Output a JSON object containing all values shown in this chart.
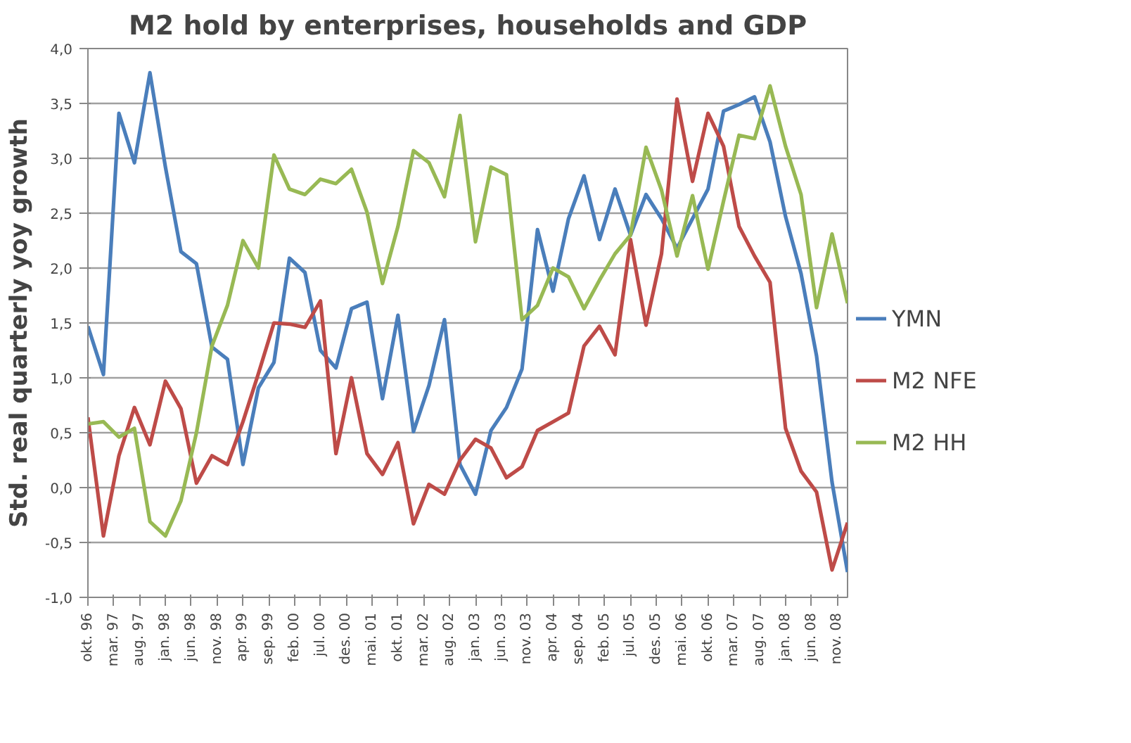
{
  "chart_data": {
    "type": "line",
    "title": "M2 hold by enterprises, households and GDP",
    "ylabel": "Std. real quarterly yoy growth",
    "x": [
      "1996-10",
      "1997-01",
      "1997-04",
      "1997-07",
      "1997-10",
      "1998-01",
      "1998-04",
      "1998-07",
      "1998-10",
      "1999-01",
      "1999-04",
      "1999-07",
      "1999-10",
      "2000-01",
      "2000-04",
      "2000-07",
      "2000-10",
      "2001-01",
      "2001-04",
      "2001-07",
      "2001-10",
      "2002-01",
      "2002-04",
      "2002-07",
      "2002-10",
      "2003-01",
      "2003-04",
      "2003-07",
      "2003-10",
      "2004-01",
      "2004-04",
      "2004-07",
      "2004-10",
      "2005-01",
      "2005-04",
      "2005-07",
      "2005-10",
      "2006-01",
      "2006-04",
      "2006-07",
      "2006-10",
      "2007-01",
      "2007-04",
      "2007-07",
      "2007-10",
      "2008-01",
      "2008-04",
      "2008-07",
      "2008-10",
      "2009-01"
    ],
    "series": [
      {
        "name": "YMN",
        "color": "#4a7ebb",
        "values": [
          1.47,
          1.03,
          3.41,
          2.96,
          3.78,
          2.92,
          2.15,
          2.04,
          1.28,
          1.17,
          0.21,
          0.91,
          1.14,
          2.09,
          1.96,
          1.25,
          1.09,
          1.63,
          1.69,
          0.81,
          1.57,
          0.51,
          0.93,
          1.53,
          0.21,
          -0.06,
          0.52,
          0.73,
          1.08,
          2.35,
          1.79,
          2.45,
          2.84,
          2.26,
          2.72,
          2.3,
          2.67,
          2.45,
          2.18,
          2.45,
          2.72,
          3.43,
          3.49,
          3.56,
          3.15,
          2.47,
          1.95,
          1.2,
          0.05,
          -0.77
        ]
      },
      {
        "name": "M2 NFE",
        "color": "#be4b48",
        "values": [
          0.64,
          -0.44,
          0.29,
          0.73,
          0.39,
          0.97,
          0.72,
          0.04,
          0.29,
          0.21,
          0.6,
          1.04,
          1.5,
          1.49,
          1.46,
          1.7,
          0.31,
          1.0,
          0.31,
          0.12,
          0.41,
          -0.33,
          0.03,
          -0.06,
          0.25,
          0.44,
          0.36,
          0.09,
          0.19,
          0.52,
          0.6,
          0.68,
          1.29,
          1.47,
          1.21,
          2.26,
          1.48,
          2.13,
          3.54,
          2.79,
          3.41,
          3.11,
          2.38,
          2.11,
          1.87,
          0.54,
          0.15,
          -0.04,
          -0.75,
          -0.32
        ]
      },
      {
        "name": "M2 HH",
        "color": "#98b954",
        "values": [
          0.58,
          0.6,
          0.46,
          0.54,
          -0.31,
          -0.44,
          -0.12,
          0.5,
          1.29,
          1.66,
          2.25,
          2.0,
          3.03,
          2.72,
          2.67,
          2.81,
          2.77,
          2.9,
          2.51,
          1.86,
          2.38,
          3.07,
          2.96,
          2.65,
          3.39,
          2.24,
          2.92,
          2.85,
          1.53,
          1.66,
          2.0,
          1.92,
          1.63,
          1.89,
          2.13,
          2.3,
          3.1,
          2.71,
          2.11,
          2.66,
          1.99,
          2.61,
          3.21,
          3.18,
          3.66,
          3.11,
          2.67,
          1.64,
          2.31,
          1.68
        ]
      }
    ],
    "xlim": [
      "1996-10",
      "2009-01"
    ],
    "xticks": [
      {
        "value": "1996-10",
        "label": "okt. 96"
      },
      {
        "value": "1997-03",
        "label": "mar. 97"
      },
      {
        "value": "1997-08",
        "label": "aug. 97"
      },
      {
        "value": "1998-01",
        "label": "jan. 98"
      },
      {
        "value": "1998-06",
        "label": "jun. 98"
      },
      {
        "value": "1998-11",
        "label": "nov. 98"
      },
      {
        "value": "1999-04",
        "label": "apr. 99"
      },
      {
        "value": "1999-09",
        "label": "sep. 99"
      },
      {
        "value": "2000-02",
        "label": "feb. 00"
      },
      {
        "value": "2000-07",
        "label": "jul. 00"
      },
      {
        "value": "2000-12",
        "label": "des. 00"
      },
      {
        "value": "2001-05",
        "label": "mai. 01"
      },
      {
        "value": "2001-10",
        "label": "okt. 01"
      },
      {
        "value": "2002-03",
        "label": "mar. 02"
      },
      {
        "value": "2002-08",
        "label": "aug. 02"
      },
      {
        "value": "2003-01",
        "label": "jan. 03"
      },
      {
        "value": "2003-06",
        "label": "jun. 03"
      },
      {
        "value": "2003-11",
        "label": "nov. 03"
      },
      {
        "value": "2004-04",
        "label": "apr. 04"
      },
      {
        "value": "2004-09",
        "label": "sep. 04"
      },
      {
        "value": "2005-02",
        "label": "feb. 05"
      },
      {
        "value": "2005-07",
        "label": "jul. 05"
      },
      {
        "value": "2005-12",
        "label": "des. 05"
      },
      {
        "value": "2006-05",
        "label": "mai. 06"
      },
      {
        "value": "2006-10",
        "label": "okt. 06"
      },
      {
        "value": "2007-03",
        "label": "mar. 07"
      },
      {
        "value": "2007-08",
        "label": "aug. 07"
      },
      {
        "value": "2008-01",
        "label": "jan. 08"
      },
      {
        "value": "2008-06",
        "label": "jun. 08"
      },
      {
        "value": "2008-11",
        "label": "nov. 08"
      }
    ],
    "ylim": [
      -1,
      4
    ],
    "yticks": [
      {
        "value": -1,
        "label": "-1,0"
      },
      {
        "value": -0.5,
        "label": "-0,5"
      },
      {
        "value": 0,
        "label": "0,0"
      },
      {
        "value": 0.5,
        "label": "0,5"
      },
      {
        "value": 1,
        "label": "1,0"
      },
      {
        "value": 1.5,
        "label": "1,5"
      },
      {
        "value": 2,
        "label": "2,0"
      },
      {
        "value": 2.5,
        "label": "2,5"
      },
      {
        "value": 3,
        "label": "3,0"
      },
      {
        "value": 3.5,
        "label": "3,5"
      },
      {
        "value": 4,
        "label": "4,0"
      }
    ],
    "grid": "y",
    "legend": "right",
    "marker": "none",
    "line_style": "solid"
  }
}
